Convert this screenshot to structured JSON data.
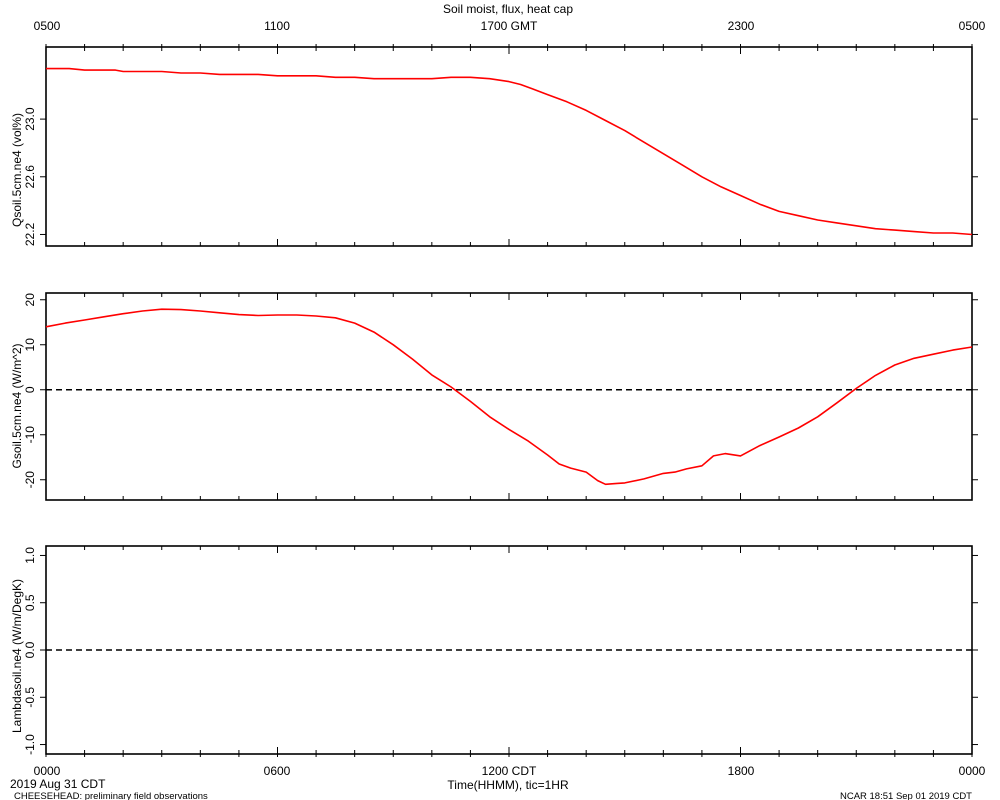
{
  "figure": {
    "title": "Soil moist, flux, heat cap",
    "xlabel": "Time(HHMM), tic=1HR",
    "footer_left_date": "2019 Aug 31 CDT",
    "footer_left_note": "CHEESEHEAD: preliminary field observations",
    "footer_right": "NCAR 18:51 Sep 01 2019 CDT"
  },
  "axes": {
    "top_ticks": [
      "0500",
      "1100",
      "1700 GMT",
      "2300",
      "0500"
    ],
    "bottom_ticks": [
      "0000",
      "0600",
      "1200 CDT",
      "1800",
      "0000"
    ]
  },
  "colors": {
    "series": "#ff0000",
    "axis": "#000000"
  },
  "chart_data": [
    {
      "type": "line",
      "ylabel": "Qsoil.5cm.ne4 (vol%)",
      "x_unit": "hours since 0000 CDT",
      "xlim": [
        0,
        24
      ],
      "ylim": [
        22.12,
        23.5
      ],
      "yticks": [
        22.2,
        22.6,
        23.0
      ],
      "ytick_labels": [
        "22.2",
        "22.6",
        "23.0"
      ],
      "zero_line": false,
      "series": [
        {
          "x": [
            0,
            0.6,
            1,
            1.5,
            1.8,
            2,
            2.5,
            3,
            3.5,
            4,
            4.5,
            5,
            5.5,
            6,
            6.5,
            7,
            7.5,
            8,
            8.5,
            9,
            9.5,
            10,
            10.5,
            11,
            11.5,
            12,
            12.3,
            12.6,
            13,
            13.5,
            14,
            14.5,
            15,
            15.5,
            16,
            16.5,
            17,
            17.5,
            18,
            18.5,
            19,
            19.5,
            20,
            20.5,
            21,
            21.5,
            22,
            22.5,
            23,
            23.5,
            24
          ],
          "y": [
            23.35,
            23.35,
            23.34,
            23.34,
            23.34,
            23.33,
            23.33,
            23.33,
            23.32,
            23.32,
            23.31,
            23.31,
            23.31,
            23.3,
            23.3,
            23.3,
            23.29,
            23.29,
            23.28,
            23.28,
            23.28,
            23.28,
            23.29,
            23.29,
            23.28,
            23.26,
            23.24,
            23.21,
            23.17,
            23.12,
            23.06,
            22.99,
            22.92,
            22.84,
            22.76,
            22.68,
            22.6,
            22.53,
            22.47,
            22.41,
            22.36,
            22.33,
            22.3,
            22.28,
            22.26,
            22.24,
            22.23,
            22.22,
            22.21,
            22.21,
            22.2
          ]
        }
      ]
    },
    {
      "type": "line",
      "ylabel": "Gsoil.5cm.ne4 (W/m^2)",
      "x_unit": "hours since 0000 CDT",
      "xlim": [
        0,
        24
      ],
      "ylim": [
        -24.5,
        21.5
      ],
      "yticks": [
        -20,
        -10,
        0,
        10,
        20
      ],
      "ytick_labels": [
        "-20",
        "-10",
        "0",
        "10",
        "20"
      ],
      "zero_line": true,
      "series": [
        {
          "x": [
            0,
            0.5,
            1,
            1.5,
            2,
            2.5,
            3,
            3.5,
            4,
            4.5,
            5,
            5.5,
            6,
            6.5,
            7,
            7.5,
            8,
            8.5,
            9,
            9.5,
            10,
            10.5,
            11,
            11.5,
            12,
            12.5,
            13,
            13.3,
            13.6,
            14,
            14.3,
            14.5,
            14.8,
            15,
            15.5,
            16,
            16.3,
            16.6,
            17,
            17.3,
            17.6,
            18,
            18.5,
            19,
            19.5,
            20,
            20.5,
            21,
            21.5,
            22,
            22.5,
            23,
            23.5,
            24
          ],
          "y": [
            14,
            14.8,
            15.5,
            16.2,
            16.9,
            17.5,
            17.9,
            17.8,
            17.5,
            17.1,
            16.7,
            16.5,
            16.6,
            16.6,
            16.4,
            16.0,
            14.8,
            12.8,
            10.0,
            6.8,
            3.3,
            0.6,
            -2.6,
            -6.0,
            -8.8,
            -11.4,
            -14.5,
            -16.5,
            -17.4,
            -18.3,
            -20.2,
            -21.0,
            -20.8,
            -20.7,
            -19.8,
            -18.6,
            -18.3,
            -17.6,
            -16.9,
            -14.7,
            -14.2,
            -14.7,
            -12.4,
            -10.5,
            -8.5,
            -6.0,
            -2.9,
            0.3,
            3.2,
            5.5,
            7.0,
            7.9,
            8.8,
            9.5
          ]
        }
      ]
    },
    {
      "type": "line",
      "ylabel": "Lambdasoil.ne4 (W/m/DegK)",
      "x_unit": "hours since 0000 CDT",
      "xlim": [
        0,
        24
      ],
      "ylim": [
        -1.1,
        1.1
      ],
      "yticks": [
        -1.0,
        -0.5,
        0.0,
        0.5,
        1.0
      ],
      "ytick_labels": [
        "-1.0",
        "-0.5",
        "0.0",
        "0.5",
        "1.0"
      ],
      "zero_line": true,
      "series": []
    }
  ]
}
